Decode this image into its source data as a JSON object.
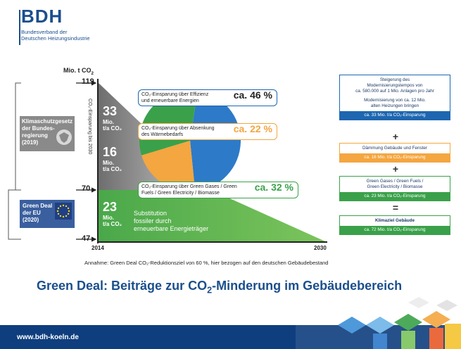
{
  "logo": {
    "name": "BDH",
    "sub_line1": "Bundesverband der",
    "sub_line2": "Deutschen Heizungsindustrie"
  },
  "axis": {
    "unit_label": "Mio. t CO",
    "unit_sub": "2",
    "ticks": [
      "119",
      "70",
      "47"
    ],
    "years": [
      "2014",
      "2030"
    ],
    "vertical_label": "CO₂-Einsparung bis 2030"
  },
  "left_labels": {
    "klima": "Klimaschutzgesetz der Bundes-regierung (2019)",
    "klima_l1": "Klimaschutzgesetz",
    "klima_l2": "der Bundes-",
    "klima_l3": "regierung",
    "klima_l4": "(2019)",
    "green_l1": "Green Deal",
    "green_l2": "der EU",
    "green_l3": "(2020)"
  },
  "values": [
    {
      "num": "33",
      "unit1": "Mio.",
      "unit2": "t/a CO₂"
    },
    {
      "num": "16",
      "unit1": "Mio.",
      "unit2": "t/a CO₂"
    },
    {
      "num": "23",
      "unit1": "Mio.",
      "unit2": "t/a CO₂"
    }
  ],
  "substitution": {
    "l1": "Substitution",
    "l2": "fossiler durch",
    "l3": "erneuerbare Energieträger"
  },
  "callouts": [
    {
      "l1": "CO₂-Einsparung über Effizienz",
      "l2": "und erneuerbare Energien",
      "pct": "ca. 46 %",
      "color": "#1e66b0"
    },
    {
      "l1": "CO₂-Einsparung über Absenkung",
      "l2": "des Wärmebedarfs",
      "pct": "ca. 22 %",
      "color": "#f4a640"
    },
    {
      "l1": "CO₂-Einsparung über Green Gases / Green",
      "l2": "Fuels / Green Electricity / Biomasse",
      "pct": "ca. 32 %",
      "color": "#3aa14a"
    }
  ],
  "pie": {
    "shares": [
      46,
      22,
      32
    ],
    "colors": [
      "#2d7ac9",
      "#f4a640",
      "#3aa14a"
    ]
  },
  "right_boxes": [
    {
      "body": [
        "Steigerung des",
        "Modernisierungstempos von",
        "ca. 580.000 auf 1 Mio. Anlagen pro Jahr",
        "",
        "Modernisierung von ca. 12 Mio.",
        "alten Heizungen bringen"
      ],
      "foot": "ca. 33 Mio. t/a CO₂-Einsparung",
      "color": "#1e66b0"
    },
    {
      "body": [
        "Dämmung Gebäude und Fenster"
      ],
      "foot": "ca. 16 Mio. t/a CO₂-Einsparung",
      "color": "#f4a640"
    },
    {
      "body": [
        "Green Gases / Green Fuels /",
        "Green Electricity / Biomasse"
      ],
      "foot": "ca. 23 Mio. t/a CO₂-Einsparung",
      "color": "#3aa14a"
    },
    {
      "body": [
        "Klimaziel Gebäude"
      ],
      "foot": "ca. 72 Mio. t/a CO₂-Einsparung",
      "color": "#3aa14a"
    }
  ],
  "operators": [
    "+",
    "+",
    "="
  ],
  "assumption": "Annahme: Green Deal CO₂-Reduktionsziel von 60 %, hier bezogen auf den deutschen Gebäudebestand",
  "headline_part1": "Green Deal: Beiträge zur CO",
  "headline_sub": "2",
  "headline_part2": "-Minderung im Gebäudebereich",
  "footer_url": "www.bdh-koeln.de"
}
